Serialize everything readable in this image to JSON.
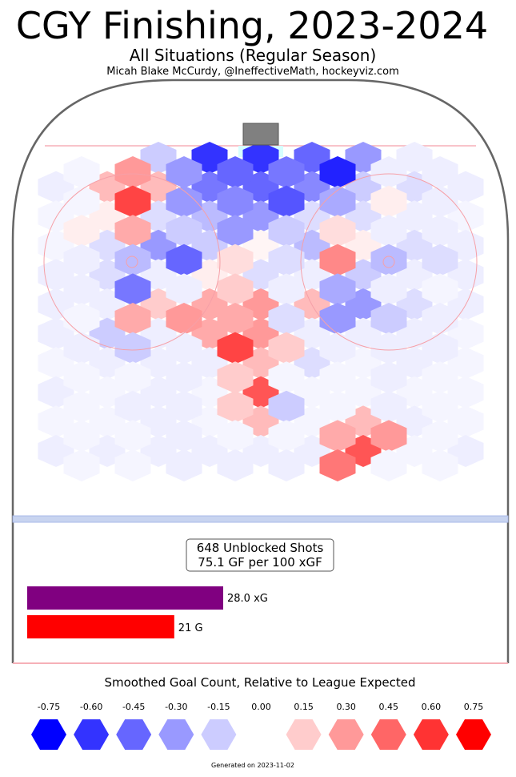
{
  "title": "CGY Finishing, 2023-2024",
  "subtitle": "All Situations (Regular Season)",
  "byline": "Micah Blake McCurdy, @IneffectiveMath, hockeyviz.com",
  "summary": {
    "line1": "648 Unblocked Shots",
    "line2": "75.1 GF per 100 xGF"
  },
  "bars": {
    "xg": {
      "value": 28.0,
      "label": "28.0 xG",
      "color": "#800080"
    },
    "g": {
      "value": 21,
      "label": "21 G",
      "color": "#ff0000"
    }
  },
  "legend": {
    "title": "Smoothed Goal Count, Relative to League Expected",
    "levels": [
      "-0.75",
      "-0.60",
      "-0.45",
      "-0.30",
      "-0.15",
      "0.00",
      "0.15",
      "0.30",
      "0.45",
      "0.60",
      "0.75"
    ],
    "colors": [
      "#0000ff",
      "#3333ff",
      "#6666ff",
      "#9999ff",
      "#ccccff",
      "#ffffff",
      "#ffcccc",
      "#ff9999",
      "#ff6666",
      "#ff3333",
      "#ff0000"
    ]
  },
  "footer": "Generated on 2023-11-02",
  "chart_data": {
    "type": "heatmap",
    "title": "CGY Finishing, 2023-2024",
    "value_range": [
      -0.75,
      0.75
    ],
    "grid": {
      "columns": 17,
      "rows_even": 12,
      "rows_odd": 12,
      "even_rows": [
        [
          null,
          null,
          null,
          null,
          -0.15,
          null,
          -0.6,
          null,
          -0.6,
          null,
          -0.45,
          null,
          -0.3,
          null,
          -0.05,
          null,
          null
        ],
        [
          -0.05,
          null,
          0.2,
          null,
          0.2,
          null,
          -0.4,
          null,
          -0.45,
          null,
          -0.35,
          null,
          -0.15,
          null,
          -0.1,
          null,
          -0.05
        ],
        [
          -0.03,
          null,
          0.05,
          null,
          -0.1,
          null,
          -0.2,
          null,
          -0.3,
          null,
          -0.1,
          null,
          -0.1,
          null,
          -0.05,
          null,
          -0.03
        ],
        [
          -0.03,
          null,
          -0.1,
          null,
          -0.3,
          null,
          -0.15,
          null,
          0.03,
          null,
          -0.2,
          null,
          0.05,
          null,
          -0.1,
          null,
          -0.05
        ],
        [
          -0.05,
          null,
          -0.1,
          null,
          -0.05,
          null,
          0.05,
          null,
          -0.1,
          null,
          -0.05,
          null,
          -0.15,
          null,
          -0.05,
          null,
          -0.05
        ],
        [
          -0.05,
          null,
          -0.05,
          null,
          0.15,
          null,
          0.25,
          null,
          0.3,
          null,
          0.2,
          null,
          -0.3,
          null,
          -0.1,
          null,
          -0.05
        ],
        [
          -0.05,
          null,
          -0.15,
          null,
          -0.05,
          null,
          0.25,
          null,
          0.3,
          null,
          -0.05,
          null,
          -0.05,
          null,
          -0.05,
          null,
          -0.03
        ],
        [
          -0.03,
          null,
          -0.05,
          null,
          -0.05,
          null,
          -0.05,
          null,
          0.2,
          null,
          -0.1,
          null,
          -0.03,
          null,
          -0.05,
          null,
          -0.03
        ],
        [
          -0.05,
          null,
          -0.03,
          null,
          -0.05,
          null,
          -0.03,
          null,
          0.5,
          null,
          -0.03,
          null,
          -0.03,
          null,
          -0.03,
          null,
          -0.03
        ],
        [
          -0.03,
          null,
          -0.03,
          null,
          -0.05,
          null,
          -0.03,
          null,
          0.2,
          null,
          -0.03,
          null,
          0.2,
          null,
          -0.05,
          null,
          -0.03
        ],
        [
          -0.05,
          null,
          -0.05,
          null,
          -0.05,
          null,
          -0.05,
          null,
          -0.05,
          null,
          -0.05,
          null,
          0.5,
          null,
          -0.03,
          null,
          -0.05
        ],
        [
          null,
          null,
          null,
          null,
          null,
          null,
          null,
          null,
          null,
          null,
          null,
          null,
          null,
          null,
          null,
          null,
          null
        ]
      ],
      "odd_rows": [
        [
          null,
          -0.03,
          null,
          0.3,
          null,
          -0.3,
          null,
          -0.45,
          null,
          -0.4,
          null,
          -0.65,
          null,
          -0.05,
          null,
          -0.05,
          null
        ],
        [
          null,
          -0.03,
          null,
          0.55,
          null,
          -0.3,
          null,
          -0.35,
          null,
          -0.5,
          null,
          -0.25,
          null,
          0.05,
          null,
          -0.05,
          null
        ],
        [
          null,
          0.05,
          null,
          0.25,
          null,
          -0.15,
          null,
          -0.3,
          null,
          -0.15,
          null,
          0.1,
          null,
          -0.05,
          null,
          -0.05,
          null
        ],
        [
          null,
          -0.05,
          null,
          -0.2,
          null,
          -0.45,
          null,
          0.1,
          null,
          -0.1,
          null,
          0.35,
          null,
          -0.2,
          null,
          -0.1,
          null
        ],
        [
          null,
          -0.05,
          null,
          -0.4,
          null,
          -0.05,
          null,
          0.15,
          null,
          -0.05,
          null,
          -0.25,
          null,
          -0.05,
          null,
          -0.03,
          null
        ],
        [
          null,
          -0.03,
          null,
          0.25,
          null,
          0.3,
          null,
          0.25,
          null,
          -0.1,
          null,
          -0.3,
          null,
          -0.15,
          null,
          -0.05,
          null
        ],
        [
          null,
          -0.05,
          null,
          -0.15,
          null,
          -0.05,
          null,
          0.55,
          null,
          0.15,
          null,
          -0.05,
          null,
          -0.05,
          null,
          -0.05,
          null
        ],
        [
          null,
          -0.03,
          null,
          -0.03,
          null,
          -0.05,
          null,
          0.15,
          null,
          -0.03,
          null,
          -0.03,
          null,
          -0.05,
          null,
          -0.03,
          null
        ],
        [
          null,
          -0.03,
          null,
          -0.05,
          null,
          -0.05,
          null,
          0.15,
          null,
          -0.15,
          null,
          -0.03,
          null,
          -0.05,
          null,
          -0.03,
          null
        ],
        [
          null,
          -0.03,
          null,
          -0.03,
          null,
          -0.05,
          null,
          -0.03,
          null,
          -0.03,
          null,
          0.25,
          null,
          0.3,
          null,
          -0.03,
          null
        ],
        [
          null,
          -0.03,
          null,
          -0.03,
          null,
          -0.05,
          null,
          -0.05,
          null,
          -0.05,
          null,
          0.4,
          null,
          -0.03,
          null,
          -0.03,
          null
        ],
        [
          null,
          null,
          null,
          null,
          null,
          null,
          null,
          null,
          null,
          null,
          null,
          null,
          null,
          null,
          null,
          null,
          null
        ]
      ]
    }
  }
}
